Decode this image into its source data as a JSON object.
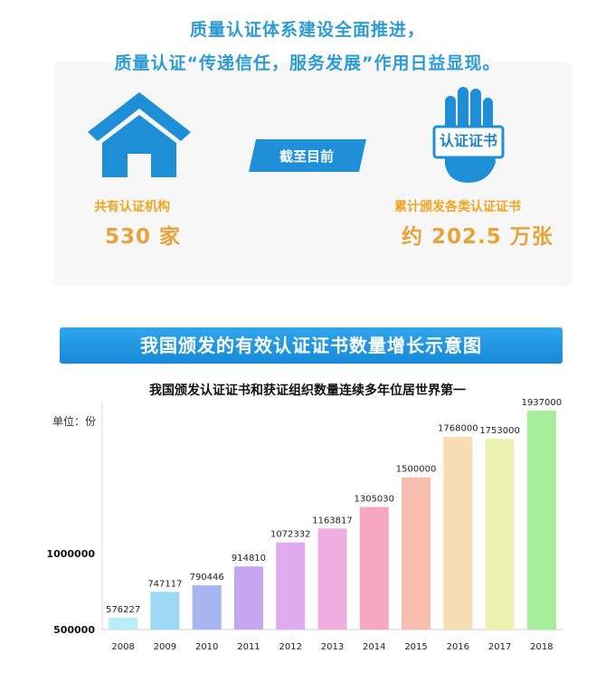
{
  "headline": {
    "line1": "质量认证体系建设全面推进，",
    "line2": "质量认证“传递信任，服务发展”作用日益显现。"
  },
  "icons": {
    "left": "house-icon",
    "right": "raised-hand-icon"
  },
  "certificate_label": "认证证书",
  "ribbon_label": "截至目前",
  "institutions": {
    "label": "共有认证机构",
    "value": "530 家"
  },
  "certificates": {
    "label": "累计颁发各类认证证书",
    "value": "约 202.5 万张"
  },
  "banner_title": "我国颁发的有效认证证书数量增长示意图",
  "colors": {
    "accent": "#2e9bd6",
    "stat": "#f0a420",
    "banner": "#1e93de"
  },
  "chart_data": {
    "type": "bar",
    "title": "我国颁发认证证书和获证组织数量连续多年位居世界第一",
    "ylabel": "单位：份",
    "categories": [
      "2008",
      "2009",
      "2010",
      "2011",
      "2012",
      "2013",
      "2014",
      "2015",
      "2016",
      "2017",
      "2018"
    ],
    "values": [
      576227,
      747117,
      790446,
      914810,
      1072332,
      1163817,
      1305030,
      1500000,
      1768000,
      1753000,
      1937000
    ],
    "value_labels": [
      "576227",
      "747117",
      "790446",
      "914810",
      "1072332",
      "1163817",
      "1305030",
      "1500000",
      "1768000",
      "1753000",
      "1937000"
    ],
    "yticks": [
      500000,
      1000000
    ],
    "ytick_labels": [
      "500000",
      "1000000"
    ],
    "ylim": [
      500000,
      1950000
    ],
    "grid": false,
    "bar_colors": [
      "#b8ecf8",
      "#9cd8f6",
      "#a6b4f0",
      "#c6a6ee",
      "#e0aaee",
      "#f0aee0",
      "#f6a8c0",
      "#f6bcae",
      "#f8dcb4",
      "#eef2b0",
      "#a6ee9a"
    ]
  }
}
